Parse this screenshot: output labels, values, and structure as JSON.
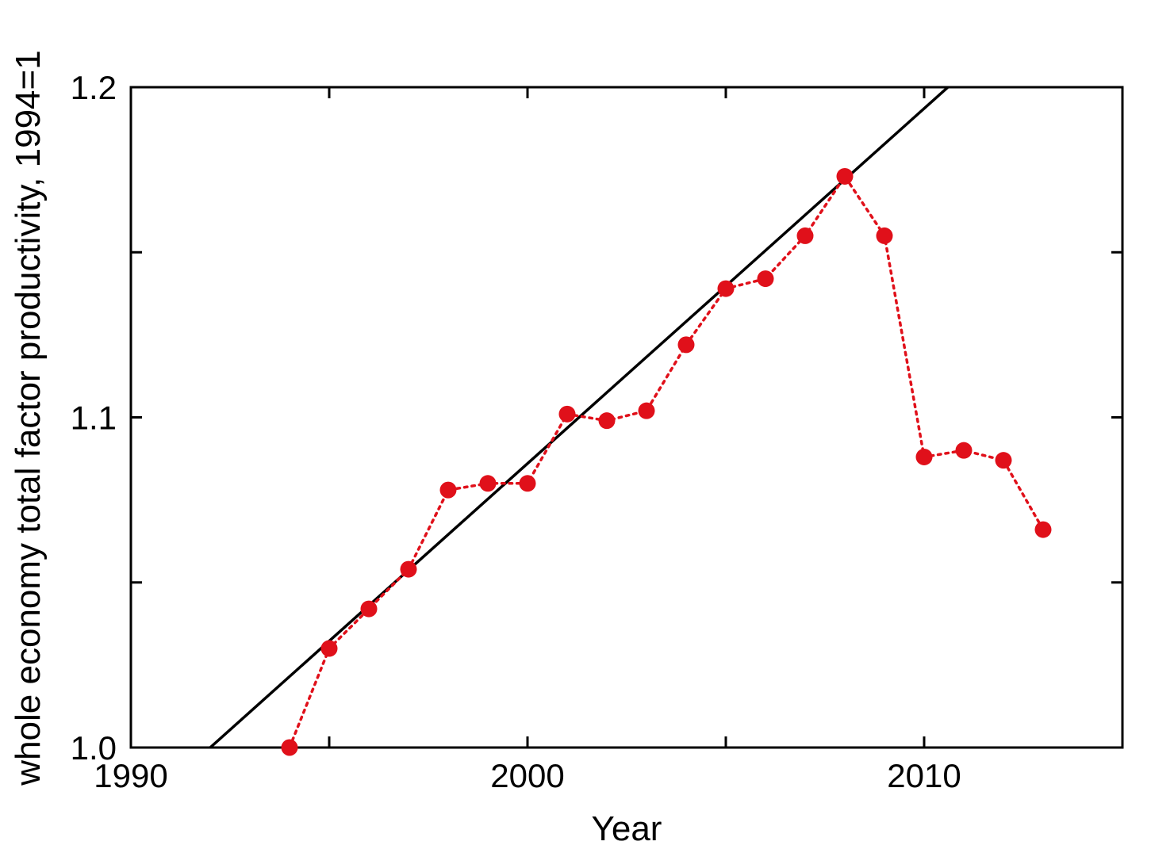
{
  "chart_data": {
    "type": "line",
    "title": "",
    "xlabel": "Year",
    "ylabel": "whole economy total factor productivity, 1994=1",
    "xlim": [
      1990,
      2015
    ],
    "ylim": [
      1.0,
      1.2
    ],
    "x_ticks": [
      1990,
      2000,
      2010
    ],
    "x_tick_labels": [
      "1990",
      "2000",
      "2010"
    ],
    "x_minor_ticks": [
      1995,
      2005,
      2015
    ],
    "y_ticks": [
      1.0,
      1.1,
      1.2
    ],
    "y_tick_labels": [
      "1.0",
      "1.1",
      "1.2"
    ],
    "y_minor_ticks": [
      1.05,
      1.15
    ],
    "grid": false,
    "legend": "none",
    "series": [
      {
        "style": "dotted-with-markers",
        "color": "#e0101a",
        "x": [
          1994,
          1995,
          1996,
          1997,
          1998,
          1999,
          2000,
          2001,
          2002,
          2003,
          2004,
          2005,
          2006,
          2007,
          2008,
          2009,
          2010,
          2011,
          2012,
          2013
        ],
        "y": [
          1.0,
          1.03,
          1.042,
          1.054,
          1.078,
          1.08,
          1.08,
          1.101,
          1.099,
          1.102,
          1.122,
          1.139,
          1.142,
          1.155,
          1.173,
          1.155,
          1.088,
          1.09,
          1.087,
          1.066
        ]
      },
      {
        "style": "solid-trend",
        "color": "#000000",
        "x": [
          1992,
          2010.6
        ],
        "y": [
          1.0,
          1.2
        ]
      }
    ]
  }
}
